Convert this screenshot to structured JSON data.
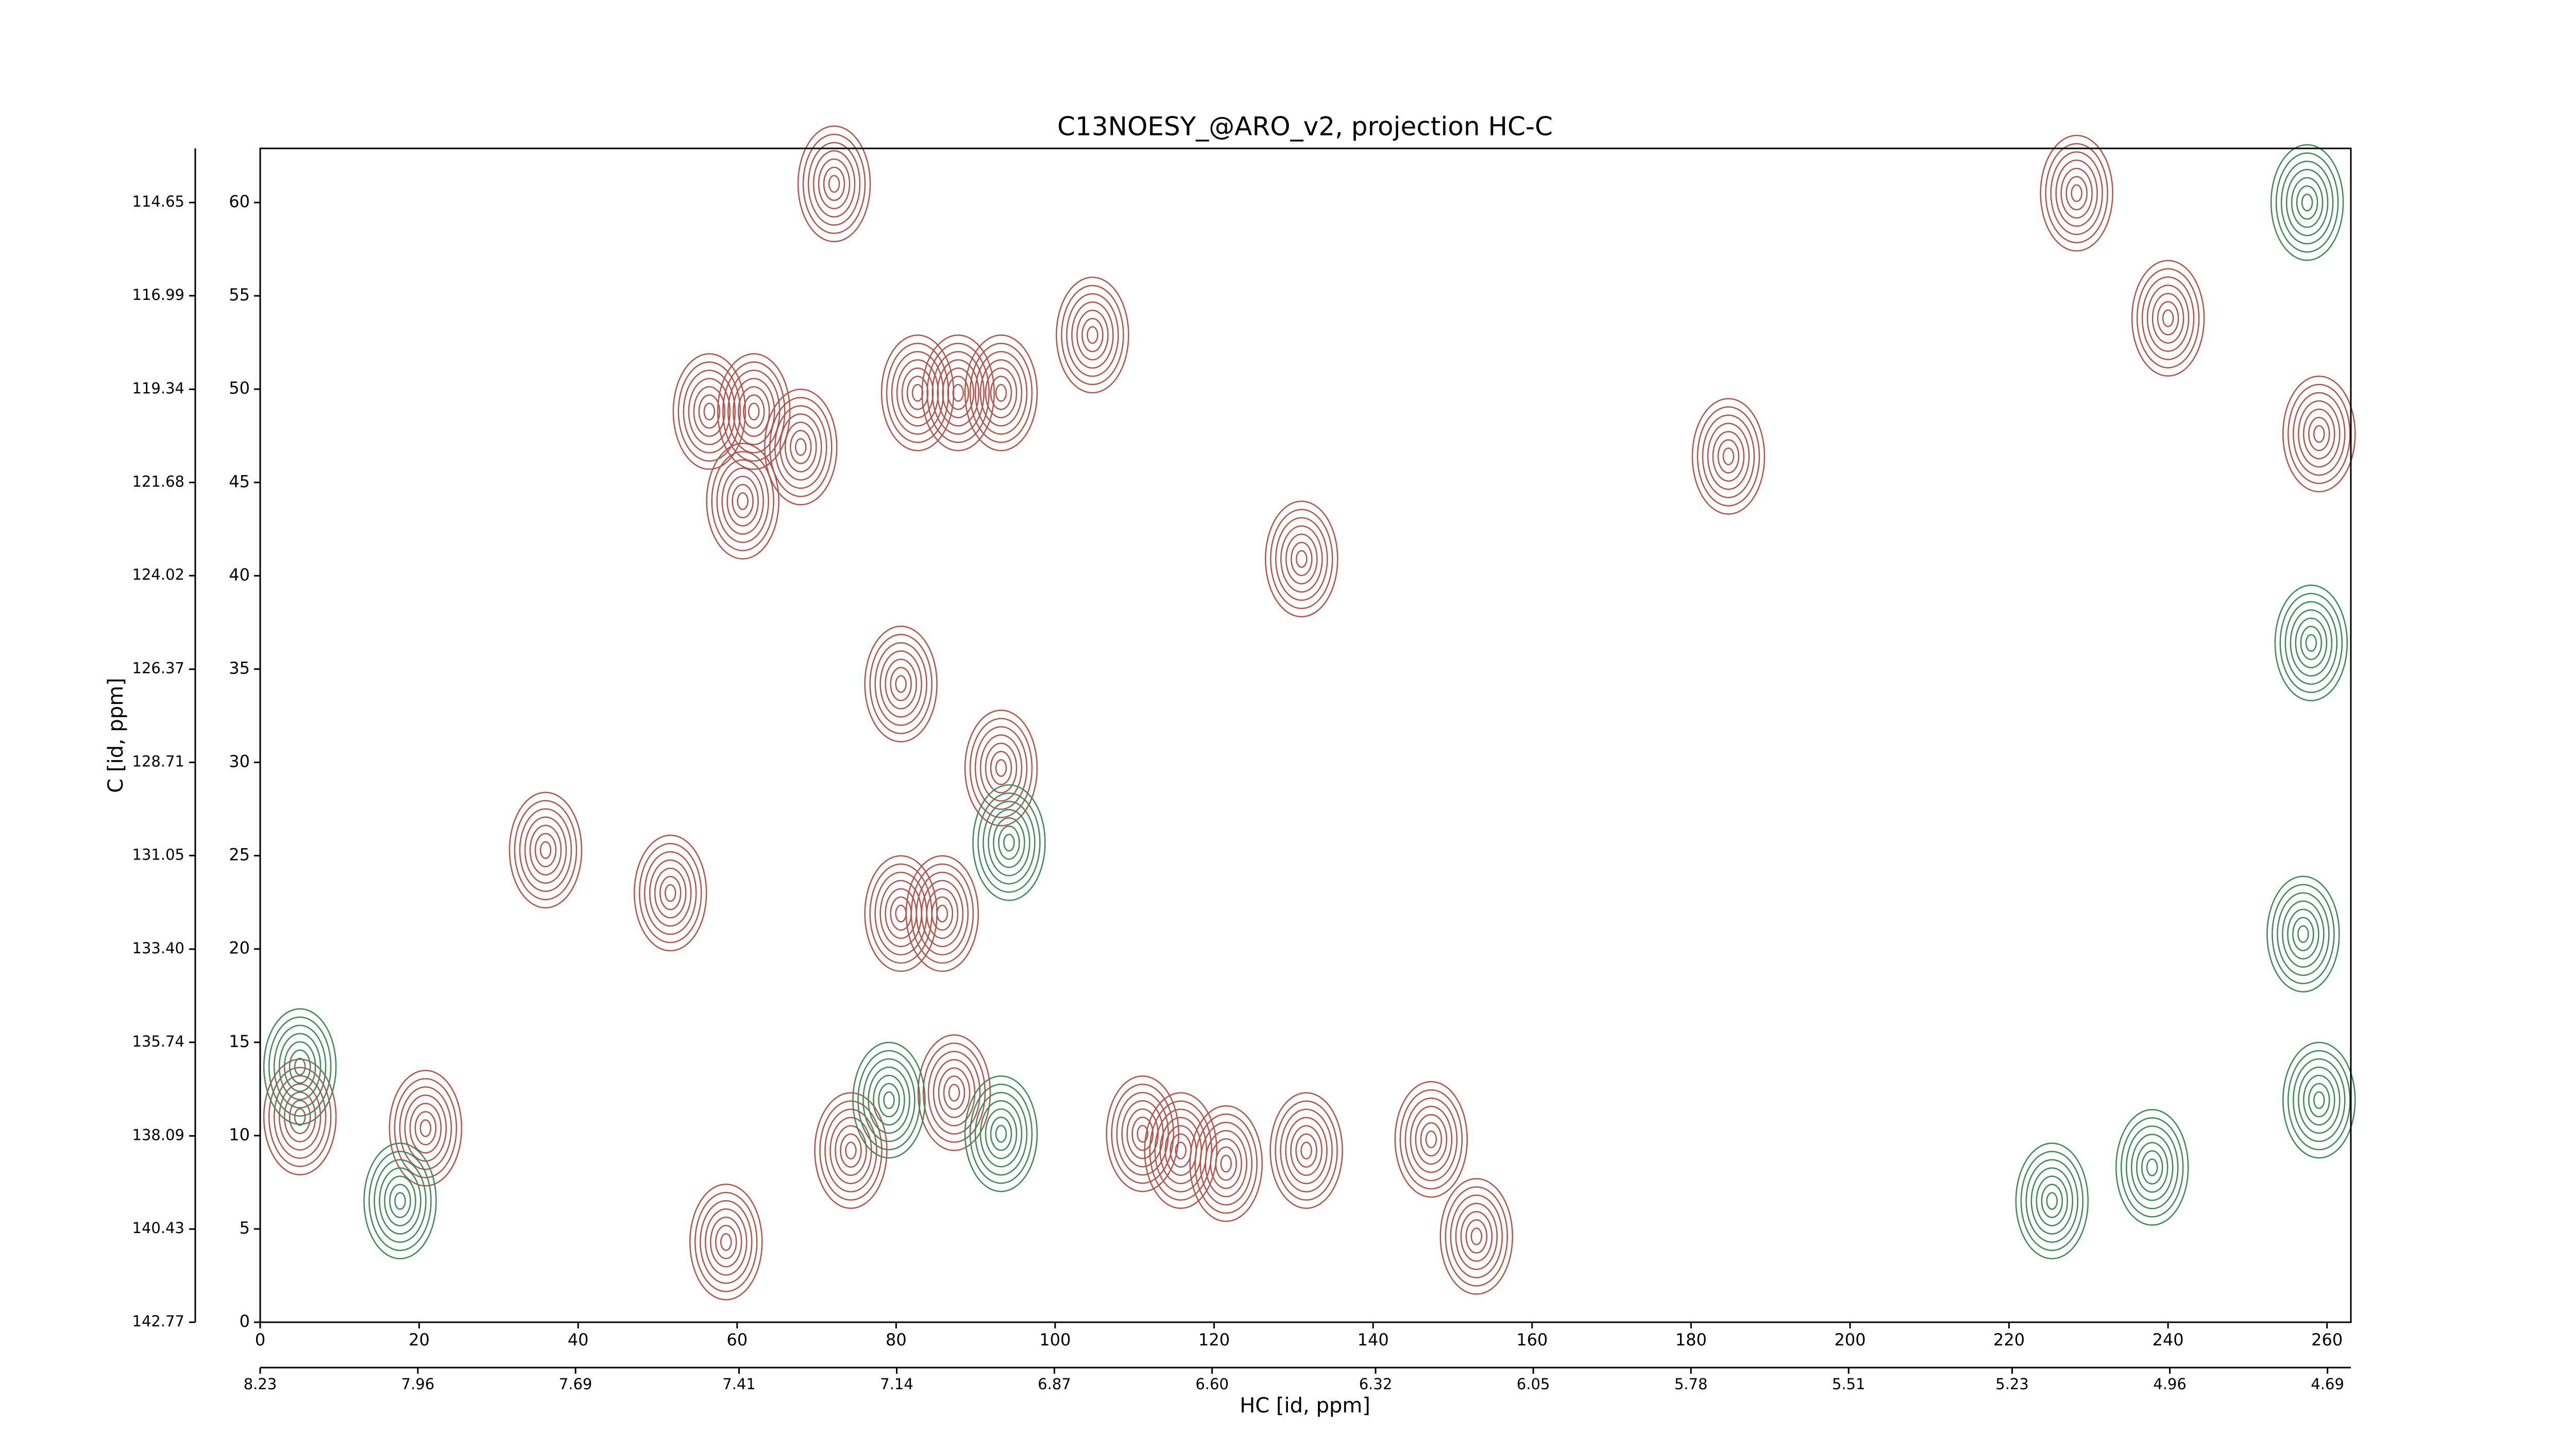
{
  "chart_data": {
    "type": "contour",
    "title": "C13NOESY_@ARO_v2, projection HC-C",
    "xlabel": "HC [id, ppm]",
    "ylabel": "C [id, ppm]",
    "xlim": [
      0,
      263
    ],
    "xticks": [
      0,
      20,
      40,
      60,
      80,
      100,
      120,
      140,
      160,
      180,
      200,
      220,
      240,
      260
    ],
    "ylim": [
      0,
      62.9
    ],
    "yticks": [
      0,
      5,
      10,
      15,
      20,
      25,
      30,
      35,
      40,
      45,
      50,
      55,
      60
    ],
    "x2lim": [
      8.23,
      4.65
    ],
    "x2ticks": [
      8.23,
      7.96,
      7.69,
      7.41,
      7.14,
      6.87,
      {
        "value": 6.6,
        "label": "6.60"
      },
      6.32,
      6.05,
      5.78,
      5.51,
      5.23,
      4.96,
      4.69
    ],
    "y2lim": [
      142.77,
      113.29
    ],
    "y2ticks": [
      142.77,
      140.43,
      138.09,
      135.74,
      {
        "value": 133.4,
        "label": "133.40"
      },
      131.05,
      128.71,
      126.37,
      124.02,
      121.68,
      119.34,
      116.99,
      114.65
    ],
    "series": [
      {
        "color": "#b5524a",
        "x": [
          72.2,
          80.6,
          85.8,
          80.6,
          93.2,
          74.3,
          62.1,
          68,
          56.5,
          60.7,
          35.9,
          51.6,
          104.7,
          87.8,
          82.7,
          93.2,
          131,
          121.5,
          147.3,
          115.8,
          111,
          131.6,
          184.7,
          5,
          20.8,
          153,
          58.6,
          87.3,
          228.5,
          240,
          259
        ],
        "y": [
          61,
          34.2,
          21.9,
          21.9,
          29.7,
          9.2,
          48.8,
          46.9,
          48.8,
          44,
          25.3,
          23,
          52.9,
          49.8,
          49.8,
          49.8,
          40.9,
          8.5,
          9.8,
          9.2,
          10.1,
          9.2,
          46.4,
          11,
          10.4,
          4.6,
          4.3,
          12.3,
          60.5,
          53.8,
          47.6
        ]
      },
      {
        "color": "#3a8a55",
        "x": [
          257.5,
          258,
          257,
          259,
          17.6,
          5,
          93.2,
          79.1,
          94.2,
          225.4,
          238
        ],
        "y": [
          60,
          36.4,
          20.8,
          11.9,
          6.5,
          13.7,
          10.1,
          11.9,
          25.7,
          6.5,
          8.3
        ]
      }
    ]
  }
}
